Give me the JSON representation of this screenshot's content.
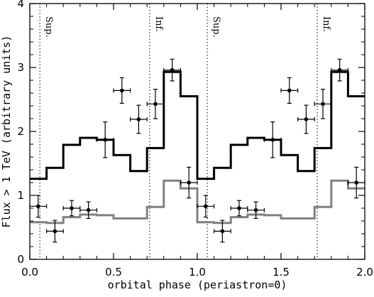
{
  "chart_data": {
    "type": "line",
    "xlabel": "orbital phase (periastron=0)",
    "ylabel": "Flux > 1 TeV (arbitrary units)",
    "xlim": [
      0.0,
      2.0
    ],
    "ylim": [
      0,
      4
    ],
    "x_ticks": [
      "0.0",
      "0.5",
      "1.0",
      "1.5",
      "2.0"
    ],
    "y_ticks": [
      "0",
      "1",
      "2",
      "3",
      "4"
    ],
    "annotations": [
      {
        "text": "Sup.",
        "x": 0.06
      },
      {
        "text": "Inf.",
        "x": 0.716
      },
      {
        "text": "Sup.",
        "x": 1.06
      },
      {
        "text": "Inf.",
        "x": 1.716
      }
    ],
    "vlines": [
      0.06,
      0.716,
      1.06,
      1.716
    ],
    "series": [
      {
        "type": "step",
        "color": "#000000",
        "bins": [
          [
            0.0,
            0.1,
            1.26
          ],
          [
            0.1,
            0.2,
            1.43
          ],
          [
            0.2,
            0.3,
            1.79
          ],
          [
            0.3,
            0.4,
            1.9
          ],
          [
            0.4,
            0.5,
            1.87
          ],
          [
            0.5,
            0.6,
            1.63
          ],
          [
            0.6,
            0.7,
            1.38
          ],
          [
            0.7,
            0.8,
            1.74
          ],
          [
            0.8,
            0.9,
            2.93
          ],
          [
            0.9,
            1.0,
            2.55
          ],
          [
            1.0,
            1.1,
            1.26
          ],
          [
            1.1,
            1.2,
            1.43
          ],
          [
            1.2,
            1.3,
            1.79
          ],
          [
            1.3,
            1.4,
            1.9
          ],
          [
            1.4,
            1.5,
            1.87
          ],
          [
            1.5,
            1.6,
            1.63
          ],
          [
            1.6,
            1.7,
            1.38
          ],
          [
            1.7,
            1.8,
            1.74
          ],
          [
            1.8,
            1.9,
            2.93
          ],
          [
            1.9,
            2.0,
            2.55
          ]
        ]
      },
      {
        "type": "step",
        "color": "#808080",
        "bins": [
          [
            0.0,
            0.1,
            0.58
          ],
          [
            0.1,
            0.2,
            0.57
          ],
          [
            0.2,
            0.3,
            0.66
          ],
          [
            0.3,
            0.4,
            0.7
          ],
          [
            0.4,
            0.5,
            0.69
          ],
          [
            0.5,
            0.6,
            0.64
          ],
          [
            0.6,
            0.7,
            0.64
          ],
          [
            0.7,
            0.8,
            0.82
          ],
          [
            0.8,
            0.9,
            1.23
          ],
          [
            0.9,
            1.0,
            1.11
          ],
          [
            1.0,
            1.1,
            0.58
          ],
          [
            1.1,
            1.2,
            0.57
          ],
          [
            1.2,
            1.3,
            0.66
          ],
          [
            1.3,
            1.4,
            0.7
          ],
          [
            1.4,
            1.5,
            0.69
          ],
          [
            1.5,
            1.6,
            0.64
          ],
          [
            1.6,
            1.7,
            0.64
          ],
          [
            1.7,
            1.8,
            0.82
          ],
          [
            1.8,
            1.9,
            1.23
          ],
          [
            1.9,
            2.0,
            1.11
          ]
        ]
      },
      {
        "type": "errorbar",
        "color": "#000000",
        "points": [
          {
            "x": 0.05,
            "y": 0.83,
            "xerr": 0.05,
            "yerr": 0.17
          },
          {
            "x": 0.15,
            "y": 0.44,
            "xerr": 0.05,
            "yerr": 0.17
          },
          {
            "x": 0.25,
            "y": 0.8,
            "xerr": 0.05,
            "yerr": 0.12
          },
          {
            "x": 0.35,
            "y": 0.77,
            "xerr": 0.05,
            "yerr": 0.13
          },
          {
            "x": 0.45,
            "y": 1.87,
            "xerr": 0.05,
            "yerr": 0.28
          },
          {
            "x": 0.55,
            "y": 2.64,
            "xerr": 0.05,
            "yerr": 0.2
          },
          {
            "x": 0.65,
            "y": 2.19,
            "xerr": 0.05,
            "yerr": 0.22
          },
          {
            "x": 0.75,
            "y": 2.43,
            "xerr": 0.05,
            "yerr": 0.23
          },
          {
            "x": 0.85,
            "y": 2.96,
            "xerr": 0.05,
            "yerr": 0.17
          },
          {
            "x": 0.95,
            "y": 1.2,
            "xerr": 0.05,
            "yerr": 0.24
          },
          {
            "x": 1.05,
            "y": 0.83,
            "xerr": 0.05,
            "yerr": 0.17
          },
          {
            "x": 1.15,
            "y": 0.44,
            "xerr": 0.05,
            "yerr": 0.17
          },
          {
            "x": 1.25,
            "y": 0.8,
            "xerr": 0.05,
            "yerr": 0.12
          },
          {
            "x": 1.35,
            "y": 0.77,
            "xerr": 0.05,
            "yerr": 0.13
          },
          {
            "x": 1.45,
            "y": 1.87,
            "xerr": 0.05,
            "yerr": 0.28
          },
          {
            "x": 1.55,
            "y": 2.64,
            "xerr": 0.05,
            "yerr": 0.2
          },
          {
            "x": 1.65,
            "y": 2.19,
            "xerr": 0.05,
            "yerr": 0.22
          },
          {
            "x": 1.75,
            "y": 2.43,
            "xerr": 0.05,
            "yerr": 0.23
          },
          {
            "x": 1.85,
            "y": 2.96,
            "xerr": 0.05,
            "yerr": 0.17
          },
          {
            "x": 1.95,
            "y": 1.2,
            "xerr": 0.05,
            "yerr": 0.24
          }
        ]
      }
    ],
    "grid": false,
    "legend": "none"
  }
}
